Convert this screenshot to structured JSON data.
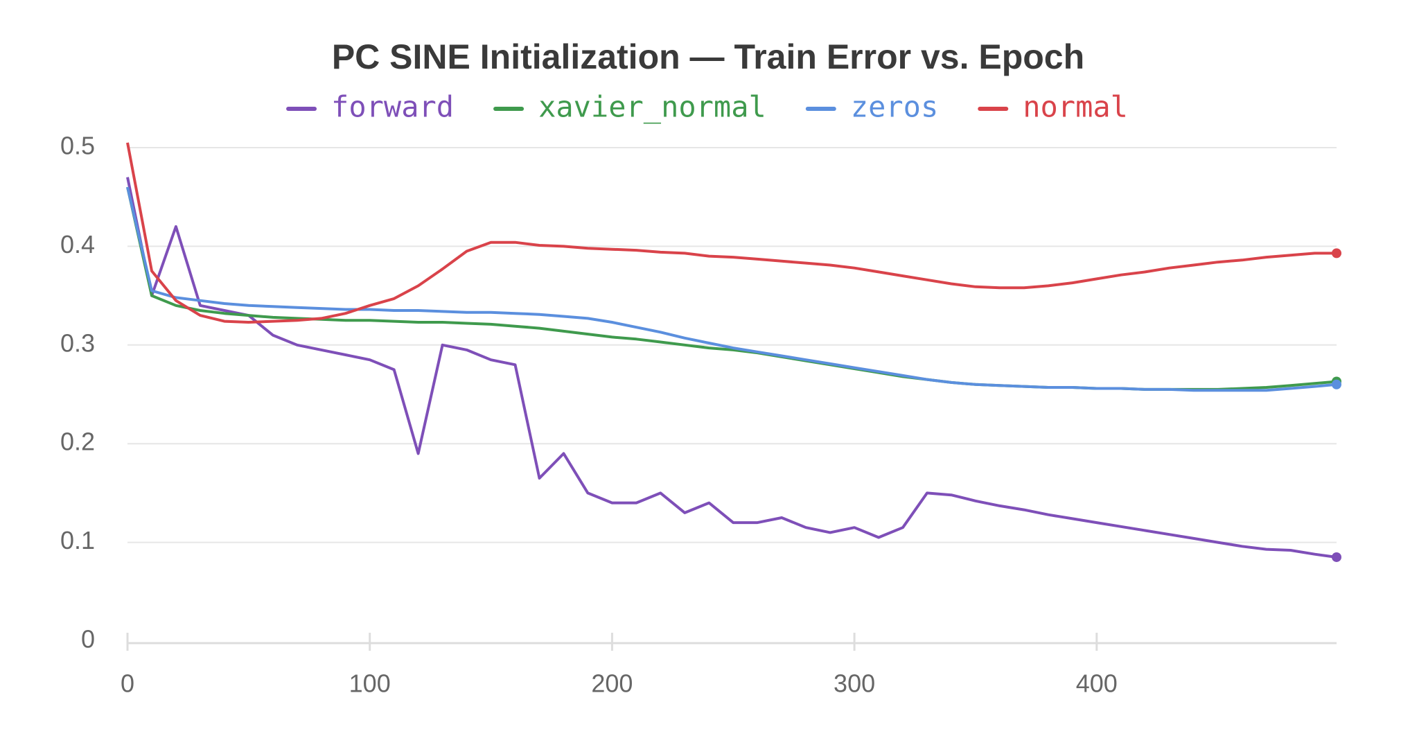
{
  "chart_data": {
    "type": "line",
    "title": "PC SINE Initialization — Train Error vs. Epoch",
    "x": [
      0,
      10,
      20,
      30,
      40,
      50,
      60,
      70,
      80,
      90,
      100,
      110,
      120,
      130,
      140,
      150,
      160,
      170,
      180,
      190,
      200,
      210,
      220,
      230,
      240,
      250,
      260,
      270,
      280,
      290,
      300,
      310,
      320,
      330,
      340,
      350,
      360,
      370,
      380,
      390,
      400,
      410,
      420,
      430,
      440,
      450,
      460,
      470,
      480,
      490,
      499
    ],
    "series": [
      {
        "name": "forward",
        "color": "#7e4fb8",
        "values": [
          0.47,
          0.35,
          0.42,
          0.34,
          0.335,
          0.33,
          0.31,
          0.3,
          0.295,
          0.29,
          0.285,
          0.275,
          0.19,
          0.3,
          0.295,
          0.285,
          0.28,
          0.165,
          0.19,
          0.15,
          0.14,
          0.14,
          0.15,
          0.13,
          0.14,
          0.12,
          0.12,
          0.125,
          0.115,
          0.11,
          0.115,
          0.105,
          0.115,
          0.15,
          0.148,
          0.142,
          0.137,
          0.133,
          0.128,
          0.124,
          0.12,
          0.116,
          0.112,
          0.108,
          0.104,
          0.1,
          0.096,
          0.093,
          0.092,
          0.088,
          0.085
        ]
      },
      {
        "name": "xavier_normal",
        "color": "#3f9a4d",
        "values": [
          0.46,
          0.35,
          0.34,
          0.335,
          0.332,
          0.33,
          0.328,
          0.327,
          0.326,
          0.325,
          0.325,
          0.324,
          0.323,
          0.323,
          0.322,
          0.321,
          0.319,
          0.317,
          0.314,
          0.311,
          0.308,
          0.306,
          0.303,
          0.3,
          0.297,
          0.295,
          0.292,
          0.288,
          0.284,
          0.28,
          0.276,
          0.272,
          0.268,
          0.265,
          0.262,
          0.26,
          0.259,
          0.258,
          0.257,
          0.257,
          0.256,
          0.256,
          0.255,
          0.255,
          0.255,
          0.255,
          0.256,
          0.257,
          0.259,
          0.261,
          0.263
        ]
      },
      {
        "name": "zeros",
        "color": "#5b8fde",
        "values": [
          0.46,
          0.355,
          0.348,
          0.345,
          0.342,
          0.34,
          0.339,
          0.338,
          0.337,
          0.336,
          0.336,
          0.335,
          0.335,
          0.334,
          0.333,
          0.333,
          0.332,
          0.331,
          0.329,
          0.327,
          0.323,
          0.318,
          0.313,
          0.307,
          0.302,
          0.297,
          0.293,
          0.289,
          0.285,
          0.281,
          0.277,
          0.273,
          0.269,
          0.265,
          0.262,
          0.26,
          0.259,
          0.258,
          0.257,
          0.257,
          0.256,
          0.256,
          0.255,
          0.255,
          0.254,
          0.254,
          0.254,
          0.254,
          0.256,
          0.258,
          0.26
        ]
      },
      {
        "name": "normal",
        "color": "#d9434a",
        "values": [
          0.505,
          0.375,
          0.345,
          0.33,
          0.324,
          0.323,
          0.324,
          0.325,
          0.327,
          0.332,
          0.34,
          0.347,
          0.36,
          0.377,
          0.395,
          0.404,
          0.404,
          0.401,
          0.4,
          0.398,
          0.397,
          0.396,
          0.394,
          0.393,
          0.39,
          0.389,
          0.387,
          0.385,
          0.383,
          0.381,
          0.378,
          0.374,
          0.37,
          0.366,
          0.362,
          0.359,
          0.358,
          0.358,
          0.36,
          0.363,
          0.367,
          0.371,
          0.374,
          0.378,
          0.381,
          0.384,
          0.386,
          0.389,
          0.391,
          0.393,
          0.393
        ]
      }
    ],
    "xlim": [
      0,
      499
    ],
    "xticks": [
      0,
      100,
      200,
      300,
      400
    ],
    "ylim": [
      0,
      0.5
    ],
    "yticks": [
      0,
      0.1,
      0.2,
      0.3,
      0.4,
      0.5
    ],
    "grid": true
  }
}
